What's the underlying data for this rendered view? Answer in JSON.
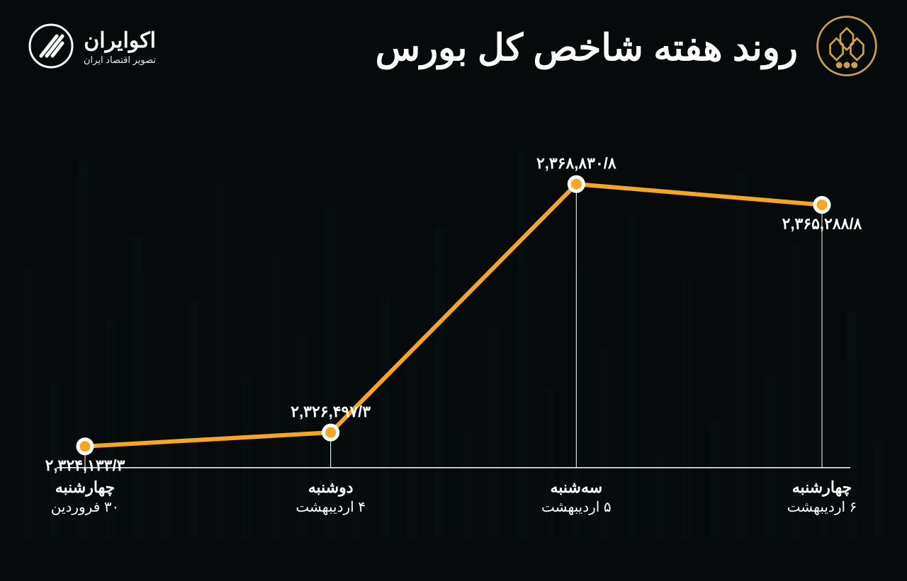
{
  "header": {
    "title": "روند هفته شاخص کل بورس",
    "brand_name": "اکوایران",
    "brand_sub": "تصویر اقتصاد ایران"
  },
  "chart": {
    "type": "line",
    "line_color": "#f5a623",
    "line_width": 6,
    "marker_fill": "#f5a623",
    "marker_stroke": "#ffffff",
    "marker_radius": 10,
    "background_color": "#060a0b",
    "axis_color": "#ffffff",
    "label_color": "#ffffff",
    "value_fontsize": 22,
    "xlabel_fontsize": 22,
    "ylim": [
      2324133.3,
      2368830.8
    ],
    "points": [
      {
        "x_day": "چهارشنبه",
        "x_date": "۳۰ فروردین",
        "value": 2324133.3,
        "value_label": "۲,۳۲۴,۱۳۳/۳",
        "label_pos": "below"
      },
      {
        "x_day": "دوشنبه",
        "x_date": "۴ اردیبهشت",
        "value": 2326497.3,
        "value_label": "۲,۳۲۶,۴۹۷/۳",
        "label_pos": "above"
      },
      {
        "x_day": "سه‌شنبه",
        "x_date": "۵ اردیبهشت",
        "value": 2368830.8,
        "value_label": "۲,۳۶۸,۸۳۰/۸",
        "label_pos": "above"
      },
      {
        "x_day": "چهارشنبه",
        "x_date": "۶ اردیبهشت",
        "value": 2365288.8,
        "value_label": "۲,۳۶۵,۲۸۸/۸",
        "label_pos": "below"
      }
    ],
    "bg_bar_heights_pct": [
      18,
      42,
      10,
      55,
      30,
      68,
      22,
      48,
      15,
      60,
      35,
      50,
      28,
      72,
      40,
      20,
      58,
      33,
      45,
      25,
      62,
      38,
      52,
      30,
      66,
      44,
      18,
      56,
      41,
      70,
      29,
      50
    ]
  }
}
